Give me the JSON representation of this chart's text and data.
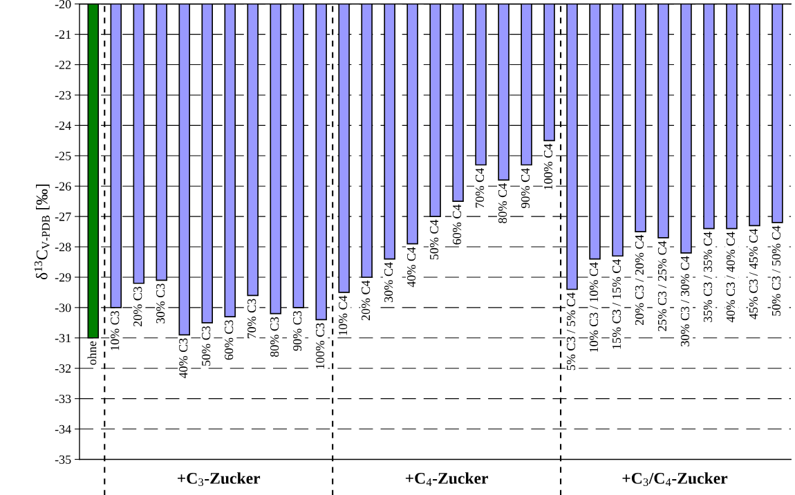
{
  "chart_data": {
    "type": "bar",
    "ylabel": "δ$^{13}$C$_{V-PDB}$ [‰]",
    "categories": [
      "ohne",
      "10% C3",
      "20% C3",
      "30% C3",
      "40% C3",
      "50% C3",
      "60% C3",
      "70% C3",
      "80% C3",
      "90% C3",
      "100% C3",
      "10% C4",
      "20% C4",
      "30% C4",
      "40% C4",
      "50% C4",
      "60% C4",
      "70% C4",
      "80% C4",
      "90% C4",
      "100% C4",
      "5% C3 / 5% C4",
      "10% C3 / 10% C4",
      "15% C3 / 15% C4",
      "20% C3 / 20% C4",
      "25% C3 / 25% C4",
      "30% C3 / 30% C4",
      "35% C3 / 35% C4",
      "40% C3 / 40% C4",
      "45% C3 / 45% C4",
      "50% C3 / 50% C4"
    ],
    "values": [
      -31.0,
      -30.0,
      -29.2,
      -29.1,
      -30.9,
      -30.5,
      -30.3,
      -29.6,
      -30.2,
      -30.0,
      -30.4,
      -29.5,
      -29.0,
      -28.4,
      -27.9,
      -27.0,
      -26.5,
      -25.3,
      -25.8,
      -25.3,
      -24.5,
      -29.4,
      -28.4,
      -28.3,
      -27.5,
      -27.7,
      -28.2,
      -27.4,
      -27.4,
      -27.3,
      -27.2
    ],
    "colors": [
      "#008000",
      "#9999ff",
      "#9999ff",
      "#9999ff",
      "#9999ff",
      "#9999ff",
      "#9999ff",
      "#9999ff",
      "#9999ff",
      "#9999ff",
      "#9999ff",
      "#9999ff",
      "#9999ff",
      "#9999ff",
      "#9999ff",
      "#9999ff",
      "#9999ff",
      "#9999ff",
      "#9999ff",
      "#9999ff",
      "#9999ff",
      "#9999ff",
      "#9999ff",
      "#9999ff",
      "#9999ff",
      "#9999ff",
      "#9999ff",
      "#9999ff",
      "#9999ff",
      "#9999ff",
      "#9999ff"
    ],
    "ylim": [
      -35,
      -20
    ],
    "yticks": [
      -35,
      -34,
      -33,
      -32,
      -31,
      -30,
      -29,
      -28,
      -27,
      -26,
      -25,
      -24,
      -23,
      -22,
      -21,
      -20
    ],
    "grid": "y",
    "annotations": [
      "+C$_{3}$-Zucker",
      "+C$_{4}$-Zucker",
      "+C$_{3}$/C$_{4}$-Zucker"
    ]
  }
}
